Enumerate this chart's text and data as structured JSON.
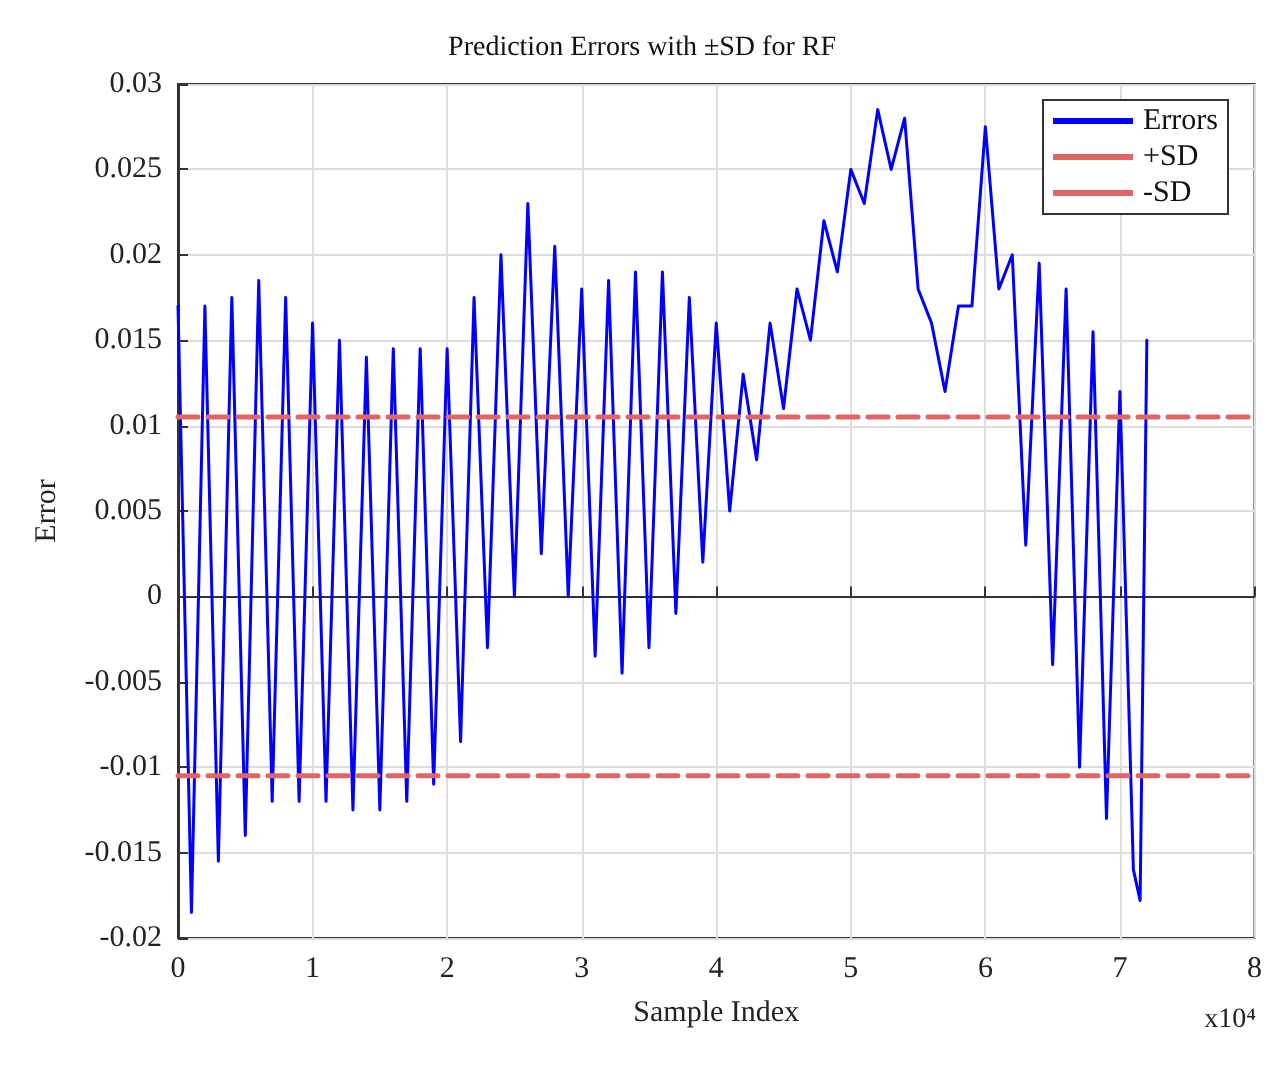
{
  "chart_data": {
    "type": "line",
    "title": "Prediction Errors with ±SD for RF",
    "xlabel": "Sample Index",
    "ylabel": "Error",
    "annotations": [
      "x10⁴"
    ],
    "xlim": [
      0,
      8
    ],
    "ylim": [
      -0.02,
      0.03
    ],
    "xticks": [
      0,
      1,
      2,
      3,
      4,
      5,
      6,
      7,
      8
    ],
    "yticks": [
      -0.02,
      -0.015,
      -0.01,
      -0.005,
      0,
      0.005,
      0.01,
      0.015,
      0.02,
      0.025,
      0.03
    ],
    "grid": true,
    "legend": "top right",
    "marker": "none",
    "series": [
      {
        "name": "Errors",
        "color": "#0000ff",
        "line_style": "solid",
        "x": [
          0,
          0.1,
          0.2,
          0.3,
          0.4,
          0.5,
          0.6,
          0.7,
          0.8,
          0.9,
          1,
          1.1,
          1.2,
          1.3,
          1.4,
          1.5,
          1.6,
          1.7,
          1.8,
          1.9,
          2,
          2.1,
          2.2,
          2.3,
          2.4,
          2.5,
          2.6,
          2.7,
          2.8,
          2.9,
          3,
          3.1,
          3.2,
          3.3,
          3.4,
          3.5,
          3.6,
          3.7,
          3.8,
          3.9,
          4,
          4.1,
          4.2,
          4.3,
          4.4,
          4.5,
          4.6,
          4.7,
          4.8,
          4.9,
          5,
          5.1,
          5.2,
          5.3,
          5.4,
          5.5,
          5.6,
          5.7,
          5.8,
          5.9,
          6,
          6.1,
          6.2,
          6.3,
          6.4,
          6.5,
          6.6,
          6.7,
          6.8,
          6.9,
          7,
          7.1,
          7.15,
          7.2
        ],
        "values": [
          0.017,
          -0.0185,
          0.017,
          -0.0155,
          0.0175,
          -0.014,
          0.0185,
          -0.012,
          0.0175,
          -0.012,
          0.016,
          -0.012,
          0.015,
          -0.0125,
          0.014,
          -0.0125,
          0.0145,
          -0.012,
          0.0145,
          -0.011,
          0.0145,
          -0.0085,
          0.0175,
          -0.003,
          0.02,
          0,
          0.023,
          0.0025,
          0.0205,
          0,
          0.018,
          -0.0035,
          0.0185,
          -0.0045,
          0.019,
          -0.003,
          0.019,
          -0.001,
          0.0175,
          0.002,
          0.016,
          0.005,
          0.013,
          0.008,
          0.016,
          0.011,
          0.018,
          0.015,
          0.022,
          0.019,
          0.025,
          0.023,
          0.0285,
          0.025,
          0.028,
          0.018,
          0.016,
          0.012,
          0.017,
          0.017,
          0.0275,
          0.018,
          0.02,
          0.003,
          0.0195,
          -0.004,
          0.018,
          -0.01,
          0.0155,
          -0.013,
          0.012,
          -0.016,
          -0.0178,
          0.015
        ]
      },
      {
        "name": "+SD",
        "color": "#e06666",
        "line_style": "dashed",
        "x": [
          0,
          8
        ],
        "values": [
          0.0105,
          0.0105
        ]
      },
      {
        "name": "-SD",
        "color": "#e06666",
        "line_style": "dashed",
        "x": [
          0,
          8
        ],
        "values": [
          -0.0105,
          -0.0105
        ]
      }
    ]
  }
}
